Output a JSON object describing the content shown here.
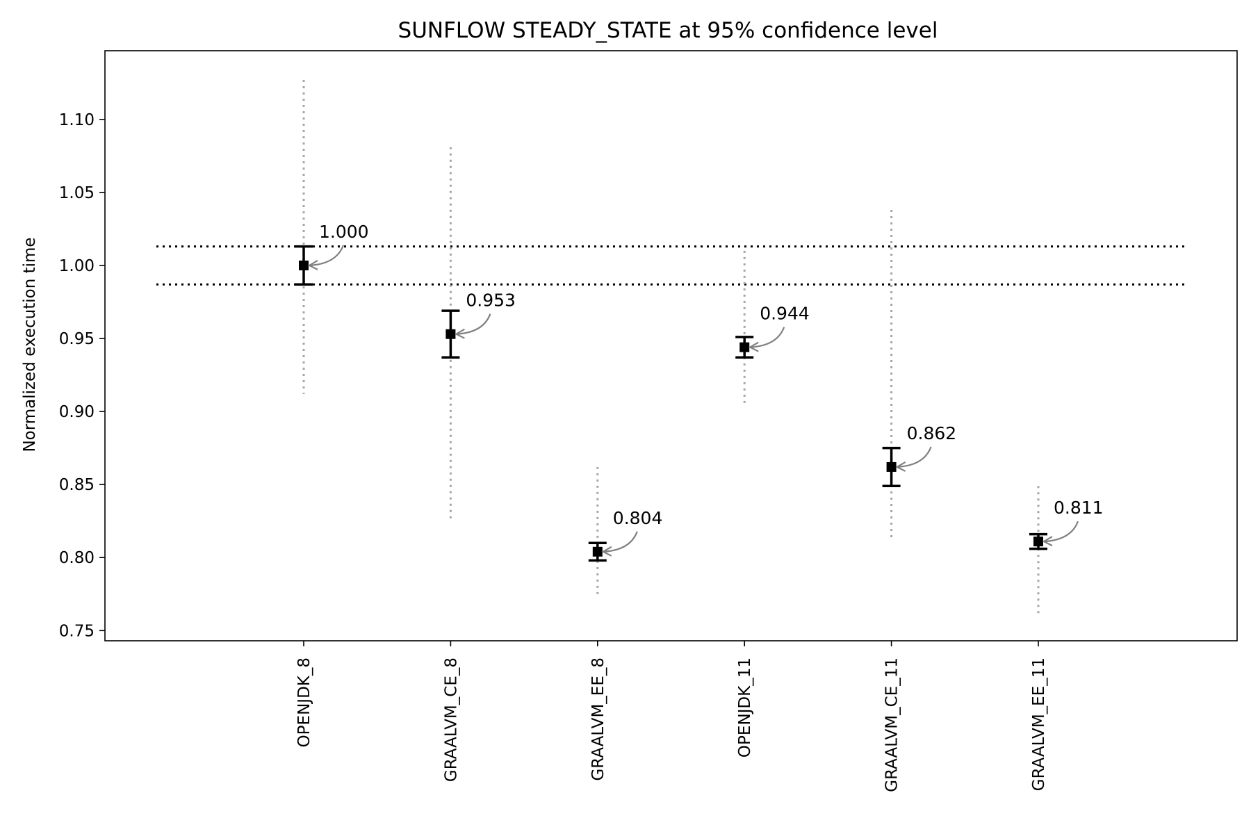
{
  "chart_data": {
    "type": "scatter",
    "title": "SUNFLOW STEADY_STATE at 95% confidence level",
    "xlabel": "",
    "ylabel": "Normalized execution time",
    "categories": [
      "OPENJDK_8",
      "GRAALVM_CE_8",
      "GRAALVM_EE_8",
      "OPENJDK_11",
      "GRAALVM_CE_11",
      "GRAALVM_EE_11"
    ],
    "values": [
      1.0,
      0.953,
      0.804,
      0.944,
      0.862,
      0.811
    ],
    "value_labels": [
      "1.000",
      "0.953",
      "0.804",
      "0.944",
      "0.862",
      "0.811"
    ],
    "ci_low": [
      0.987,
      0.937,
      0.798,
      0.937,
      0.849,
      0.806
    ],
    "ci_high": [
      1.013,
      0.969,
      0.81,
      0.951,
      0.875,
      0.816
    ],
    "range_low": [
      0.912,
      0.824,
      0.775,
      0.905,
      0.813,
      0.76
    ],
    "range_high": [
      1.127,
      1.081,
      0.862,
      1.01,
      1.038,
      0.849
    ],
    "reference_lines": [
      1.013,
      0.987
    ],
    "ylim": [
      0.743,
      1.147
    ],
    "yticks": [
      0.75,
      0.8,
      0.85,
      0.9,
      0.95,
      1.0,
      1.05,
      1.1
    ],
    "ytick_labels": [
      "0.75",
      "0.80",
      "0.85",
      "0.90",
      "0.95",
      "1.00",
      "1.05",
      "1.10"
    ],
    "grid": false,
    "colors": {
      "marker": "#000000",
      "errorbar": "#000000",
      "range": "#a6a6a6",
      "annotation_arrow": "#808080",
      "reference_line": "#000000"
    }
  }
}
